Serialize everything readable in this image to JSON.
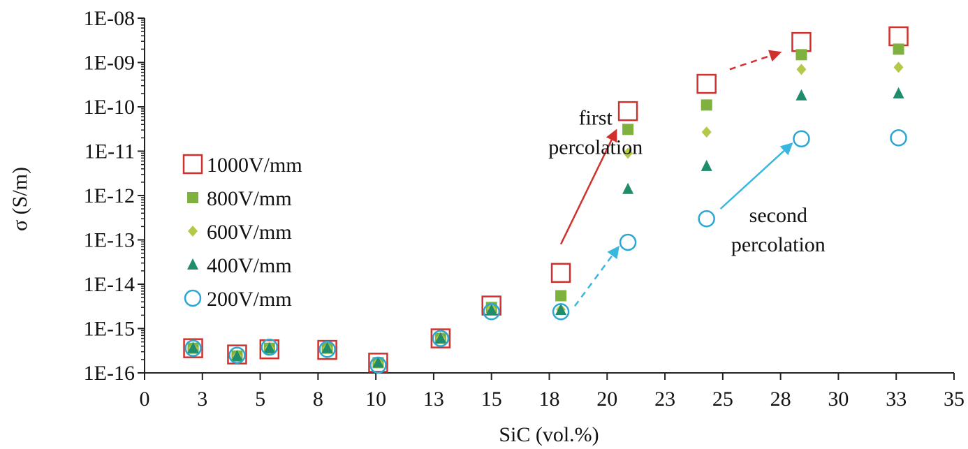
{
  "chart_data": {
    "type": "scatter",
    "xlabel": "SiC (vol.%)",
    "ylabel": "σ (S/m)",
    "x_ticks": [
      0,
      3,
      5,
      8,
      10,
      13,
      15,
      18,
      20,
      23,
      25,
      28,
      30,
      33,
      35
    ],
    "x_tick_values": [
      0,
      2.5,
      5,
      7.5,
      10,
      12.5,
      15,
      17.5,
      20,
      22.5,
      25,
      27.5,
      30,
      32.5,
      35
    ],
    "xlim": [
      0,
      35
    ],
    "y_scale": "log",
    "ylim": [
      1e-16,
      1e-08
    ],
    "y_ticks": [
      "1E-16",
      "1E-15",
      "1E-14",
      "1E-13",
      "1E-12",
      "1E-11",
      "1E-10",
      "1E-09",
      "1E-08"
    ],
    "y_tick_values": [
      1e-16,
      1e-15,
      1e-14,
      1e-13,
      1e-12,
      1e-11,
      1e-10,
      1e-09,
      1e-08
    ],
    "grid": false,
    "legend_position": "left",
    "x": [
      2.1,
      4.0,
      5.4,
      7.9,
      10.1,
      12.8,
      15.0,
      18.0,
      20.9,
      24.3,
      28.4,
      32.6
    ],
    "series": [
      {
        "name": "1000V/mm",
        "marker": "open-square",
        "color": "#d0312d",
        "values": [
          3.6e-16,
          2.6e-16,
          3.4e-16,
          3.3e-16,
          1.7e-16,
          6e-16,
          3.3e-15,
          1.8e-14,
          8e-11,
          3.3e-10,
          2.9e-09,
          3.9e-09
        ]
      },
      {
        "name": "800V/mm",
        "marker": "filled-square",
        "color": "#7fb13f",
        "values": [
          3.6e-16,
          2.4e-16,
          3.6e-16,
          3.6e-16,
          1.7e-16,
          6e-16,
          3e-15,
          5.5e-15,
          3.1e-11,
          1.1e-10,
          1.5e-09,
          2e-09
        ]
      },
      {
        "name": "600V/mm",
        "marker": "diamond",
        "color": "#b5c847",
        "values": [
          3.6e-16,
          2.4e-16,
          3.6e-16,
          3.6e-16,
          1.7e-16,
          6e-16,
          2.8e-15,
          2.7e-15,
          9e-12,
          2.7e-11,
          7e-10,
          7.8e-10
        ]
      },
      {
        "name": "400V/mm",
        "marker": "triangle",
        "color": "#1f8c6c",
        "values": [
          3.6e-16,
          2.4e-16,
          3.6e-16,
          3.6e-16,
          1.7e-16,
          6e-16,
          2.6e-15,
          2.6e-15,
          1.4e-12,
          4.6e-12,
          1.8e-10,
          2e-10
        ]
      },
      {
        "name": "200V/mm",
        "marker": "open-circle",
        "color": "#2aa7d4",
        "values": [
          3.6e-16,
          2.5e-16,
          3.8e-16,
          3.4e-16,
          1.5e-16,
          6e-16,
          2.4e-15,
          2.4e-15,
          8.8e-14,
          3e-13,
          1.9e-11,
          2e-11
        ]
      }
    ],
    "annotations": [
      {
        "lines": [
          "first",
          "percolation"
        ],
        "x": 19.5,
        "y": 4e-11
      },
      {
        "lines": [
          "second",
          "percolation"
        ],
        "x": 27.4,
        "y": 2.5e-13
      }
    ],
    "arrows": [
      {
        "from": [
          18.0,
          8e-14
        ],
        "to": [
          20.4,
          3e-11
        ],
        "color": "#d0312d",
        "dashed": false
      },
      {
        "from": [
          25.3,
          7e-10
        ],
        "to": [
          27.5,
          1.7e-09
        ],
        "color": "#d0312d",
        "dashed": true
      },
      {
        "from": [
          24.9,
          5e-13
        ],
        "to": [
          28.0,
          1.5e-11
        ],
        "color": "#38b7e0",
        "dashed": false
      },
      {
        "from": [
          18.6,
          3.2e-15
        ],
        "to": [
          20.5,
          7e-14
        ],
        "color": "#38b7e0",
        "dashed": true
      }
    ]
  }
}
